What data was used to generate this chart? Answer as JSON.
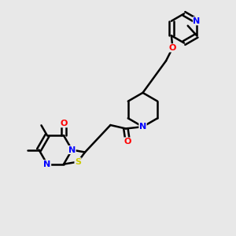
{
  "background_color": "#e8e8e8",
  "atom_colors": {
    "N": "#0000ff",
    "O": "#ff0000",
    "S": "#cccc00"
  },
  "bond_lw": 1.8,
  "figsize": [
    3.0,
    3.0
  ],
  "dpi": 100
}
